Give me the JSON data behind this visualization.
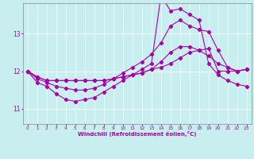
{
  "xlabel": "Windchill (Refroidissement éolien,°C)",
  "bg_color": "#c8eef0",
  "grid_color": "#ffffff",
  "line_color": "#aa00aa",
  "xlim": [
    -0.5,
    23.5
  ],
  "ylim": [
    10.6,
    13.8
  ],
  "xticks": [
    0,
    1,
    2,
    3,
    4,
    5,
    6,
    7,
    8,
    9,
    10,
    11,
    12,
    13,
    14,
    15,
    16,
    17,
    18,
    19,
    20,
    21,
    22,
    23
  ],
  "yticks": [
    11,
    12,
    13
  ],
  "series": [
    [
      12.0,
      11.85,
      11.75,
      11.75,
      11.75,
      11.75,
      11.75,
      11.75,
      11.75,
      11.8,
      11.85,
      11.9,
      11.95,
      12.05,
      12.1,
      12.2,
      12.35,
      12.5,
      12.55,
      12.6,
      12.0,
      12.0,
      12.0,
      12.05
    ],
    [
      12.0,
      11.85,
      11.75,
      11.75,
      11.75,
      11.75,
      11.75,
      11.75,
      11.75,
      11.8,
      11.85,
      11.9,
      11.95,
      12.05,
      12.25,
      12.5,
      12.65,
      12.65,
      12.55,
      12.4,
      12.2,
      12.1,
      12.0,
      12.05
    ],
    [
      12.0,
      11.8,
      11.7,
      11.6,
      11.55,
      11.5,
      11.5,
      11.55,
      11.65,
      11.8,
      11.95,
      12.1,
      12.25,
      12.45,
      12.75,
      13.2,
      13.35,
      13.2,
      13.1,
      13.05,
      12.55,
      12.1,
      12.0,
      12.05
    ],
    [
      12.0,
      11.7,
      11.6,
      11.4,
      11.25,
      11.2,
      11.25,
      11.3,
      11.45,
      11.6,
      11.75,
      11.9,
      12.05,
      12.2,
      14.0,
      13.6,
      13.65,
      13.5,
      13.35,
      12.2,
      11.9,
      11.75,
      11.65,
      11.6
    ]
  ]
}
